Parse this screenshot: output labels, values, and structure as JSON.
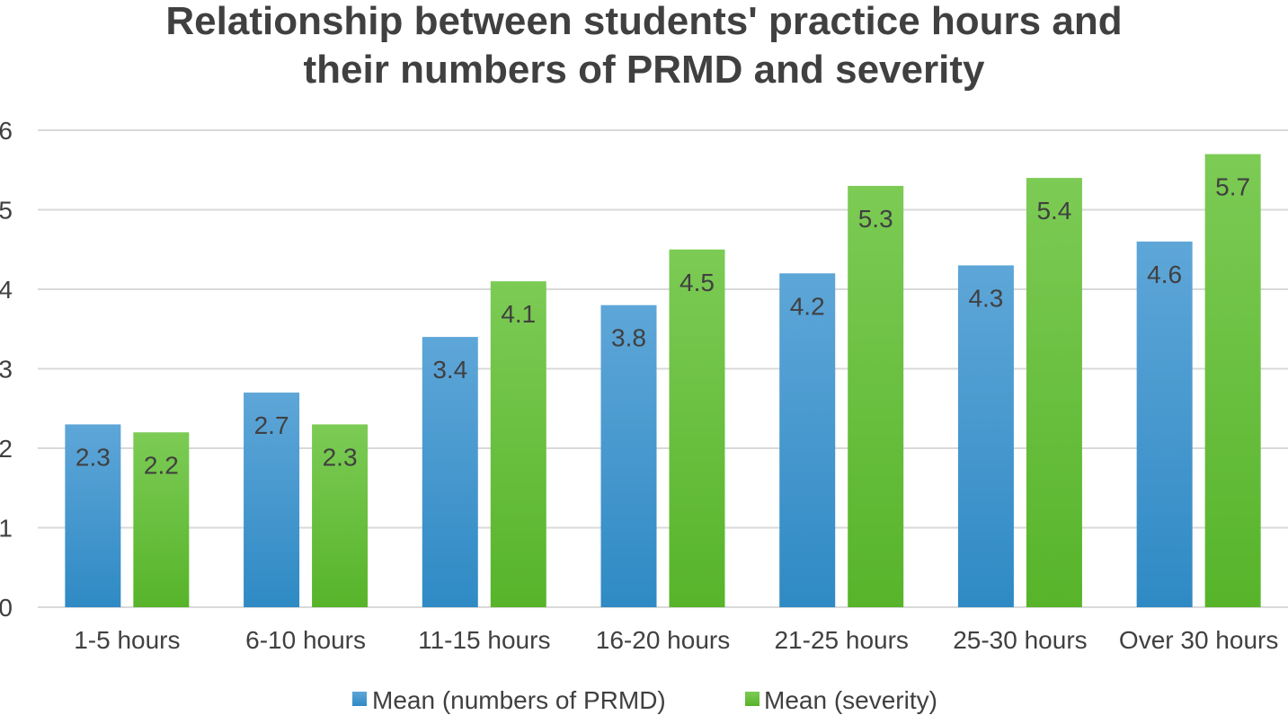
{
  "chart_data": {
    "type": "bar",
    "title_lines": [
      "Relationship between students' practice hours and",
      "their numbers of PRMD and severity"
    ],
    "categories": [
      "1-5 hours",
      "6-10 hours",
      "11-15 hours",
      "16-20 hours",
      "21-25 hours",
      "25-30 hours",
      "Over 30 hours"
    ],
    "series": [
      {
        "name": "Mean (numbers of PRMD)",
        "values": [
          2.3,
          2.7,
          3.4,
          3.8,
          4.2,
          4.3,
          4.6
        ],
        "color_top": "#5ea6d8",
        "color_bottom": "#2f8ac4"
      },
      {
        "name": "Mean (severity)",
        "values": [
          2.2,
          2.3,
          4.1,
          4.5,
          5.3,
          5.4,
          5.7
        ],
        "color_top": "#7ccb55",
        "color_bottom": "#57b42a"
      }
    ],
    "y_ticks": [
      "0",
      "1",
      "2",
      "3",
      "4",
      "5",
      "6"
    ],
    "ylim": [
      0,
      6
    ],
    "grid": true,
    "legend_position": "bottom",
    "data_labels": true
  }
}
